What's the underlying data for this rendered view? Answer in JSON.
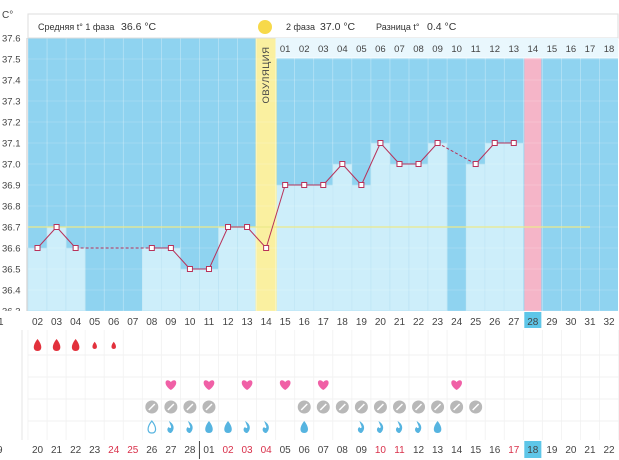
{
  "header": {
    "phase1_label": "Средняя t° 1 фаза",
    "phase1_value": "36.6 °C",
    "phase2_label": "2 фаза",
    "phase2_value": "37.0 °C",
    "diff_label": "Разница t°",
    "diff_value": "0.4 °C"
  },
  "axis_unit": "C°",
  "ovulation_label": "ОВУЛЯЦИЯ",
  "phase2_days": [
    "01",
    "02",
    "03",
    "04",
    "05",
    "06",
    "07",
    "08",
    "09",
    "10",
    "11",
    "12",
    "13",
    "14",
    "15",
    "16",
    "17",
    "18"
  ],
  "cycle_days": [
    "02",
    "03",
    "04",
    "05",
    "06",
    "07",
    "08",
    "09",
    "10",
    "11",
    "12",
    "13",
    "14",
    "15",
    "16",
    "17",
    "18",
    "19",
    "20",
    "21",
    "22",
    "23",
    "24",
    "25",
    "26",
    "27",
    "28",
    "29",
    "30",
    "31",
    "32"
  ],
  "cycle_first_partial": "1",
  "dates": [
    "20",
    "21",
    "22",
    "23",
    "24",
    "25",
    "26",
    "27",
    "28",
    "01",
    "02",
    "03",
    "04",
    "05",
    "06",
    "07",
    "08",
    "09",
    "10",
    "11",
    "12",
    "13",
    "14",
    "15",
    "16",
    "17",
    "18",
    "19",
    "20",
    "21",
    "22"
  ],
  "dates_first_partial": "9",
  "red_dates": [
    "24",
    "25",
    "02",
    "03",
    "04",
    "10",
    "11",
    "17"
  ],
  "colors": {
    "sky": "#8fd3f0",
    "bar": "#cdeefa",
    "ovulation": "#faf0a0",
    "today_pink": "#f5b5c8",
    "line": "#b8325a",
    "coverline": "#ece98a",
    "highlight": "#5ec6e8",
    "drop_red": "#e2313c",
    "heart": "#f060a6",
    "pill_gray": "#b8b8b8",
    "drop_blue": "#56b4e0"
  },
  "chart_data": {
    "type": "line",
    "xlabel": "",
    "ylabel": "C°",
    "ylim": [
      36.3,
      37.6
    ],
    "y_ticks": [
      "37.6",
      "37.5",
      "37.4",
      "37.3",
      "37.2",
      "37.1",
      "37.0",
      "36.9",
      "36.8",
      "36.7",
      "36.6",
      "36.5",
      "36.4",
      "36.3"
    ],
    "coverline": 36.7,
    "ovulation_day": "14",
    "highlight_day": "28",
    "series": [
      {
        "x": [
          "02",
          "03",
          "04",
          "08",
          "09",
          "10",
          "11",
          "12",
          "13",
          "14",
          "15",
          "16",
          "17",
          "18",
          "19",
          "20",
          "21",
          "22",
          "23",
          "25",
          "26",
          "27"
        ],
        "values": [
          36.6,
          36.7,
          36.6,
          36.6,
          36.6,
          36.5,
          36.5,
          36.7,
          36.7,
          36.6,
          36.9,
          36.9,
          36.9,
          37.0,
          36.9,
          37.1,
          37.0,
          37.0,
          37.1,
          37.0,
          37.1,
          37.1
        ]
      }
    ],
    "dashed_gaps": [
      [
        "04",
        "08"
      ],
      [
        "23",
        "25"
      ]
    ],
    "symptoms": {
      "bleeding_red_drops": [
        {
          "day": "02",
          "size": "large"
        },
        {
          "day": "03",
          "size": "large"
        },
        {
          "day": "04",
          "size": "large"
        },
        {
          "day": "05",
          "size": "small"
        },
        {
          "day": "06",
          "size": "small"
        }
      ],
      "hearts": [
        "09",
        "11",
        "13",
        "15",
        "17",
        "24"
      ],
      "pills": [
        "08",
        "09",
        "10",
        "11",
        "16",
        "17",
        "18",
        "19",
        "20",
        "21",
        "22",
        "23",
        "24",
        "25"
      ],
      "discharge_blue": [
        {
          "day": "08",
          "kind": "outline"
        },
        {
          "day": "09",
          "kind": "swirl"
        },
        {
          "day": "10",
          "kind": "swirl"
        },
        {
          "day": "11",
          "kind": "drop"
        },
        {
          "day": "12",
          "kind": "drop"
        },
        {
          "day": "13",
          "kind": "swirl"
        },
        {
          "day": "14",
          "kind": "swirl"
        },
        {
          "day": "16",
          "kind": "drop"
        },
        {
          "day": "19",
          "kind": "swirl"
        },
        {
          "day": "20",
          "kind": "swirl"
        },
        {
          "day": "21",
          "kind": "swirl"
        },
        {
          "day": "22",
          "kind": "swirl"
        },
        {
          "day": "23",
          "kind": "drop"
        }
      ]
    }
  }
}
